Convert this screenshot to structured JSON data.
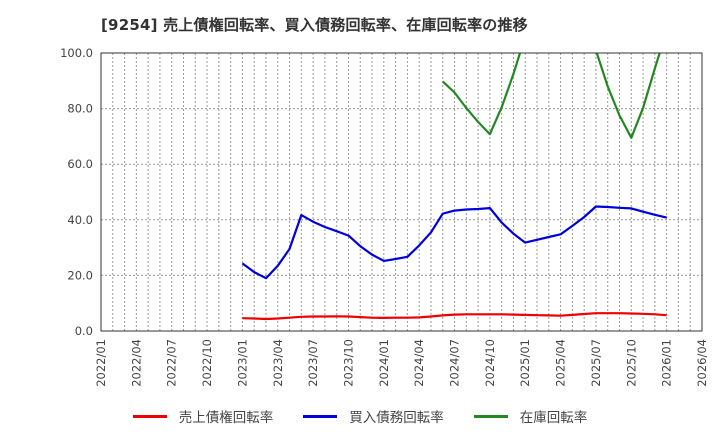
{
  "title": "[9254]  売上債権回転率、買入債務回転率、在庫回転率の推移",
  "legend": [
    {
      "label": "売上債権回転率",
      "color": "#ee0000"
    },
    {
      "label": "買入債務回転率",
      "color": "#0000dd"
    },
    {
      "label": "在庫回転率",
      "color": "#228822"
    }
  ],
  "chart_data": {
    "type": "line",
    "title": "[9254]  売上債権回転率、買入債務回転率、在庫回転率の推移",
    "xlabel": "",
    "ylabel": "",
    "ylim": [
      0,
      100
    ],
    "grid": true,
    "legend_position": "bottom",
    "y_ticks": [
      "0.0",
      "20.0",
      "40.0",
      "60.0",
      "80.0",
      "100.0"
    ],
    "x_ticks": [
      "2022/01",
      "2022/04",
      "2022/07",
      "2022/10",
      "2023/01",
      "2023/04",
      "2023/07",
      "2023/10",
      "2024/01",
      "2024/04",
      "2024/07",
      "2024/10",
      "2025/01",
      "2025/04",
      "2025/07",
      "2025/10",
      "2026/01",
      "2026/04"
    ],
    "x": [
      "2023/01",
      "2023/02",
      "2023/03",
      "2023/04",
      "2023/05",
      "2023/06",
      "2023/07",
      "2023/08",
      "2023/09",
      "2023/10",
      "2023/11",
      "2023/12",
      "2024/01",
      "2024/02",
      "2024/03",
      "2024/04",
      "2024/05",
      "2024/06",
      "2024/07",
      "2024/08",
      "2024/09",
      "2024/10",
      "2024/11",
      "2024/12",
      "2025/01",
      "2025/02",
      "2025/03",
      "2025/04",
      "2025/05",
      "2025/06",
      "2025/07",
      "2025/08",
      "2025/09",
      "2025/10",
      "2025/11",
      "2025/12",
      "2026/01"
    ],
    "series": [
      {
        "name": "売上債権回転率",
        "color": "#ee0000",
        "values": [
          4.6,
          4.5,
          4.3,
          4.5,
          4.8,
          5.1,
          5.2,
          5.2,
          5.3,
          5.2,
          5.0,
          4.8,
          4.7,
          4.8,
          4.8,
          4.9,
          5.2,
          5.6,
          5.9,
          6.0,
          6.0,
          6.0,
          6.0,
          5.9,
          5.8,
          5.7,
          5.6,
          5.5,
          5.8,
          6.1,
          6.4,
          6.4,
          6.4,
          6.3,
          6.2,
          6.0,
          5.7
        ]
      },
      {
        "name": "買入債務回転率",
        "color": "#0000dd",
        "values": [
          24.3,
          21.2,
          19.0,
          23.5,
          29.5,
          41.7,
          39.3,
          37.4,
          35.9,
          34.3,
          30.5,
          27.5,
          25.2,
          25.9,
          26.7,
          30.8,
          35.5,
          42.2,
          43.3,
          43.7,
          43.9,
          44.2,
          39.0,
          35.0,
          31.8,
          32.8,
          33.8,
          34.8,
          37.8,
          41.0,
          44.8,
          44.6,
          44.3,
          44.1,
          42.9,
          41.8,
          40.8
        ]
      },
      {
        "name": "在庫回転率",
        "color": "#228822",
        "values": [
          null,
          null,
          null,
          null,
          null,
          null,
          null,
          null,
          null,
          null,
          null,
          null,
          null,
          null,
          null,
          null,
          null,
          89.8,
          85.8,
          80.2,
          75.2,
          70.8,
          80.5,
          92.5,
          106.0,
          118.0,
          125.0,
          125.0,
          120.0,
          110.0,
          101.0,
          88.0,
          77.5,
          69.5,
          80.3,
          94.5,
          108.0
        ]
      }
    ]
  }
}
